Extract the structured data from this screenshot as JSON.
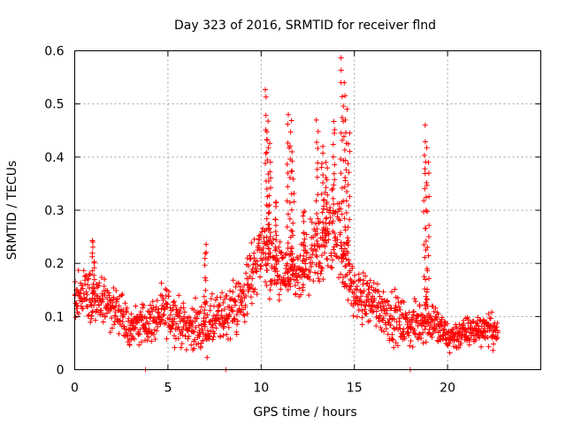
{
  "chart_data": {
    "type": "scatter",
    "title": "Day 323 of 2016, SRMTID for receiver flnd",
    "xlabel": "GPS time / hours",
    "ylabel": "SRMTID / TECUs",
    "xlim": [
      0,
      25
    ],
    "ylim": [
      0,
      0.6
    ],
    "xticks": [
      0,
      5,
      10,
      15,
      20
    ],
    "xtick_labels": [
      "0",
      "5",
      "10",
      "15",
      "20"
    ],
    "yticks": [
      0,
      0.1,
      0.2,
      0.3,
      0.4,
      0.5,
      0.6
    ],
    "ytick_labels": [
      "0",
      "0.1",
      "0.2",
      "0.3",
      "0.4",
      "0.5",
      "0.6"
    ],
    "grid": true,
    "marker": "+",
    "color": "#ff0000",
    "series": [
      {
        "name": "SRMTID",
        "envelope": [
          {
            "t": 0.0,
            "center": 0.13,
            "spread": 0.04
          },
          {
            "t": 0.5,
            "center": 0.15,
            "spread": 0.05
          },
          {
            "t": 1.0,
            "center": 0.13,
            "spread": 0.06
          },
          {
            "t": 2.0,
            "center": 0.12,
            "spread": 0.05
          },
          {
            "t": 3.0,
            "center": 0.08,
            "spread": 0.04
          },
          {
            "t": 4.0,
            "center": 0.09,
            "spread": 0.04
          },
          {
            "t": 5.0,
            "center": 0.11,
            "spread": 0.05
          },
          {
            "t": 6.0,
            "center": 0.08,
            "spread": 0.04
          },
          {
            "t": 7.0,
            "center": 0.08,
            "spread": 0.05
          },
          {
            "t": 8.0,
            "center": 0.1,
            "spread": 0.05
          },
          {
            "t": 9.0,
            "center": 0.13,
            "spread": 0.06
          },
          {
            "t": 10.0,
            "center": 0.23,
            "spread": 0.07
          },
          {
            "t": 11.0,
            "center": 0.18,
            "spread": 0.06
          },
          {
            "t": 12.0,
            "center": 0.17,
            "spread": 0.05
          },
          {
            "t": 13.0,
            "center": 0.22,
            "spread": 0.08
          },
          {
            "t": 14.0,
            "center": 0.27,
            "spread": 0.09
          },
          {
            "t": 15.0,
            "center": 0.14,
            "spread": 0.05
          },
          {
            "t": 16.0,
            "center": 0.13,
            "spread": 0.05
          },
          {
            "t": 17.0,
            "center": 0.1,
            "spread": 0.05
          },
          {
            "t": 18.0,
            "center": 0.08,
            "spread": 0.04
          },
          {
            "t": 19.0,
            "center": 0.1,
            "spread": 0.05
          },
          {
            "t": 20.0,
            "center": 0.06,
            "spread": 0.03
          },
          {
            "t": 21.0,
            "center": 0.07,
            "spread": 0.03
          },
          {
            "t": 22.0,
            "center": 0.08,
            "spread": 0.03
          },
          {
            "t": 22.7,
            "center": 0.07,
            "spread": 0.03
          }
        ],
        "spikes": [
          {
            "t": 10.25,
            "peak": 0.53
          },
          {
            "t": 10.35,
            "peak": 0.47
          },
          {
            "t": 10.45,
            "peak": 0.43
          },
          {
            "t": 10.8,
            "peak": 0.32
          },
          {
            "t": 11.45,
            "peak": 0.48
          },
          {
            "t": 11.6,
            "peak": 0.47
          },
          {
            "t": 11.7,
            "peak": 0.41
          },
          {
            "t": 12.3,
            "peak": 0.3
          },
          {
            "t": 13.0,
            "peak": 0.47
          },
          {
            "t": 13.3,
            "peak": 0.42
          },
          {
            "t": 13.5,
            "peak": 0.39
          },
          {
            "t": 13.9,
            "peak": 0.47
          },
          {
            "t": 14.3,
            "peak": 0.59
          },
          {
            "t": 14.45,
            "peak": 0.54
          },
          {
            "t": 14.55,
            "peak": 0.49
          },
          {
            "t": 14.7,
            "peak": 0.45
          },
          {
            "t": 18.75,
            "peak": 0.46
          },
          {
            "t": 18.85,
            "peak": 0.42
          },
          {
            "t": 18.95,
            "peak": 0.39
          },
          {
            "t": 1.0,
            "peak": 0.25
          },
          {
            "t": 7.0,
            "peak": 0.24
          }
        ],
        "zero_points": [
          3.8,
          8.1,
          18.0
        ]
      }
    ]
  }
}
